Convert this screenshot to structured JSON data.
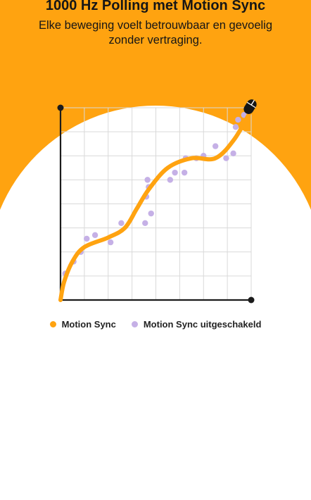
{
  "header": {
    "title": "1000 Hz Polling met Motion Sync",
    "subtitle": "Elke beweging voelt betrouwbaar en gevoelig zonder vertraging."
  },
  "colors": {
    "background": "#ffa310",
    "panel": "#ffffff",
    "motion_sync": "#ffa310",
    "motion_sync_off": "#c5b0e6",
    "axis": "#1b1b1b",
    "grid": "#d9d9d9"
  },
  "icons": {
    "curve_end": "computer-mouse-icon"
  },
  "chart_data": {
    "type": "scatter",
    "title": "",
    "xlabel": "",
    "ylabel": "",
    "xlim": [
      0,
      8
    ],
    "ylim": [
      0,
      8
    ],
    "grid": true,
    "legend_position": "bottom",
    "series": [
      {
        "name": "Motion Sync",
        "kind": "line",
        "color": "#ffa310",
        "points": [
          [
            0,
            0
          ],
          [
            0.15,
            0.75
          ],
          [
            0.5,
            1.6
          ],
          [
            1,
            2.2
          ],
          [
            2,
            2.6
          ],
          [
            2.7,
            3.0
          ],
          [
            3.2,
            3.8
          ],
          [
            3.7,
            4.6
          ],
          [
            4.5,
            5.5
          ],
          [
            5.5,
            5.9
          ],
          [
            6.5,
            5.9
          ],
          [
            7.3,
            6.7
          ],
          [
            8,
            7.9
          ]
        ]
      },
      {
        "name": "Motion Sync uitgeschakeld",
        "kind": "scatter",
        "color": "#c5b0e6",
        "points": [
          [
            0.2,
            1.1
          ],
          [
            0.55,
            1.6
          ],
          [
            0.85,
            2.0
          ],
          [
            1.1,
            2.55
          ],
          [
            1.45,
            2.7
          ],
          [
            2.1,
            2.4
          ],
          [
            2.55,
            3.2
          ],
          [
            3.55,
            3.2
          ],
          [
            3.8,
            3.6
          ],
          [
            3.6,
            4.3
          ],
          [
            3.7,
            4.7
          ],
          [
            3.65,
            5.0
          ],
          [
            4.6,
            5.0
          ],
          [
            4.8,
            5.3
          ],
          [
            5.2,
            5.3
          ],
          [
            5.25,
            5.9
          ],
          [
            5.7,
            5.9
          ],
          [
            6.0,
            6.0
          ],
          [
            6.5,
            6.4
          ],
          [
            6.95,
            5.9
          ],
          [
            7.25,
            6.1
          ],
          [
            7.35,
            7.2
          ],
          [
            7.45,
            7.5
          ],
          [
            7.7,
            7.7
          ]
        ]
      }
    ]
  }
}
